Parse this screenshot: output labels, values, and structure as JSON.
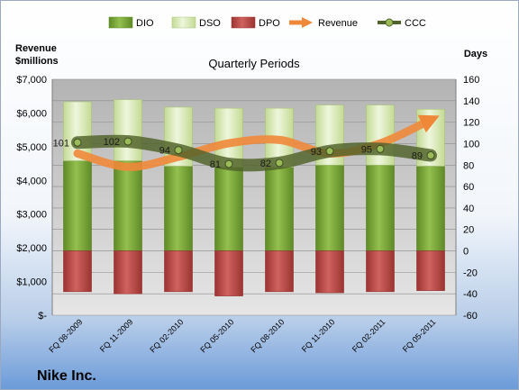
{
  "company": "Nike Inc.",
  "chart_data": {
    "type": "bar",
    "title": "Quarterly Periods",
    "left_axis_title_line1": "Revenue",
    "left_axis_title_line2": "$millions",
    "right_axis_title": "Days",
    "categories": [
      "FQ 08-2009",
      "FQ 11-2009",
      "FQ 02-2010",
      "FQ 05-2010",
      "FQ 08-2010",
      "FQ 11-2010",
      "FQ 02-2011",
      "FQ 05-2011"
    ],
    "ylim_left": [
      0,
      7000
    ],
    "ylim_right": [
      -60,
      160
    ],
    "left_ticks": [
      "$-",
      "$1,000",
      "$2,000",
      "$3,000",
      "$4,000",
      "$5,000",
      "$6,000",
      "$7,000"
    ],
    "right_ticks": [
      "-60",
      "-40",
      "-20",
      "0",
      "20",
      "40",
      "60",
      "80",
      "100",
      "120",
      "140",
      "160"
    ],
    "series": [
      {
        "name": "DIO",
        "axis": "right",
        "type": "stacked-bar",
        "color": "#7aa33a",
        "values": [
          84,
          84,
          79,
          78,
          78,
          80,
          80,
          79
        ]
      },
      {
        "name": "DSO",
        "axis": "right",
        "type": "stacked-bar",
        "color": "#d7e8b4",
        "values": [
          55,
          57,
          55,
          55,
          55,
          56,
          56,
          53
        ]
      },
      {
        "name": "DPO",
        "axis": "right",
        "type": "negative-bar",
        "color": "#c0504d",
        "values": [
          38,
          40,
          38,
          42,
          38,
          39,
          38,
          37
        ]
      },
      {
        "name": "Revenue",
        "axis": "left",
        "type": "line",
        "color": "#f0883a",
        "values": [
          4800,
          4400,
          4700,
          5100,
          5200,
          4800,
          5100,
          5800
        ]
      },
      {
        "name": "CCC",
        "axis": "right",
        "type": "line",
        "color": "#4f6228",
        "values": [
          101,
          102,
          94,
          81,
          82,
          93,
          95,
          89
        ]
      }
    ],
    "grid": true,
    "legend_position": "top"
  }
}
